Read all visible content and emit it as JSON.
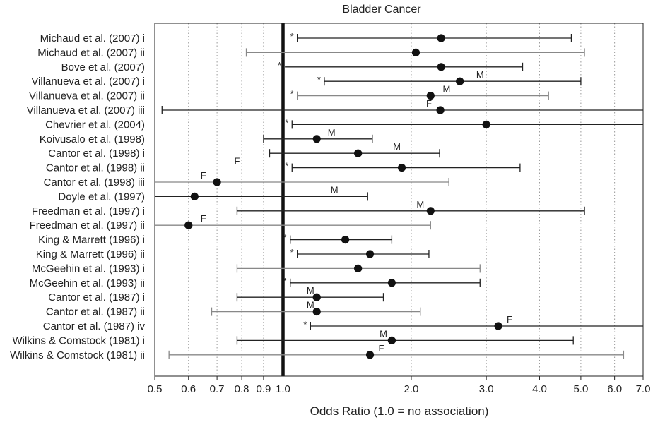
{
  "chart_data": {
    "type": "forest",
    "title": "Bladder Cancer",
    "xlabel": "Odds Ratio (1.0 = no association)",
    "xscale": "log",
    "xlim": [
      0.5,
      7.0
    ],
    "reference_line": 1.0,
    "ticks": [
      0.5,
      0.6,
      0.7,
      0.8,
      0.9,
      1.0,
      2.0,
      3.0,
      4.0,
      5.0,
      6.0,
      7.0
    ],
    "tick_labels": [
      "0.5",
      "0.6",
      "0.7",
      "0.8",
      "0.9",
      "1.0",
      "2.0",
      "3.0",
      "4.0",
      "5.0",
      "6.0",
      "7.0"
    ],
    "grid": "vertical-dotted",
    "studies": [
      {
        "label": "Michaud et al. (2007) i",
        "or": 2.35,
        "lo": 1.08,
        "hi": 4.75,
        "ci_color": "#222222",
        "cap_lo": true,
        "cap_hi": true,
        "mark": "*",
        "mark_side": "lo"
      },
      {
        "label": "Michaud et al. (2007) ii",
        "or": 2.05,
        "lo": 0.82,
        "hi": 5.1,
        "ci_color": "#888888",
        "cap_lo": true,
        "cap_hi": true,
        "mark": "",
        "mark_side": "lo"
      },
      {
        "label": "Bove et al. (2007)",
        "or": 2.35,
        "lo": 1.01,
        "hi": 3.65,
        "ci_color": "#222222",
        "cap_lo": false,
        "cap_hi": true,
        "mark": "*",
        "mark_side": "lo"
      },
      {
        "label": "Villanueva et al. (2007) i",
        "or": 2.6,
        "lo": 1.25,
        "hi": 5.0,
        "ci_color": "#222222",
        "cap_lo": true,
        "cap_hi": true,
        "mark": "*",
        "mark_side": "lo"
      },
      {
        "label": "Villanueva et al. (2007) ii",
        "or": 2.22,
        "lo": 1.08,
        "hi": 4.2,
        "ci_color": "#888888",
        "cap_lo": true,
        "cap_hi": true,
        "mark": "*",
        "mark_side": "lo"
      },
      {
        "label": "Villanueva et al. (2007) iii",
        "or": 2.34,
        "lo": 0.52,
        "hi": 7.0,
        "ci_color": "#222222",
        "cap_lo": true,
        "cap_hi": false,
        "mark": "",
        "mark_side": "lo"
      },
      {
        "label": "Chevrier et al. (2004)",
        "or": 3.0,
        "lo": 1.05,
        "hi": 7.0,
        "ci_color": "#222222",
        "cap_lo": true,
        "cap_hi": false,
        "mark": "*",
        "mark_side": "lo"
      },
      {
        "label": "Koivusalo et al. (1998)",
        "or": 1.2,
        "lo": 0.9,
        "hi": 1.62,
        "ci_color": "#222222",
        "cap_lo": true,
        "cap_hi": true,
        "mark": "",
        "mark_side": "lo"
      },
      {
        "label": "Cantor et al. (1998) i",
        "or": 1.5,
        "lo": 0.93,
        "hi": 2.33,
        "ci_color": "#222222",
        "cap_lo": true,
        "cap_hi": true,
        "mark": "",
        "mark_side": "lo"
      },
      {
        "label": "Cantor et al. (1998) ii",
        "or": 1.9,
        "lo": 1.05,
        "hi": 3.6,
        "ci_color": "#222222",
        "cap_lo": true,
        "cap_hi": true,
        "mark": "*",
        "mark_side": "lo"
      },
      {
        "label": "Cantor et al. (1998) iii",
        "or": 0.7,
        "lo": 0.5,
        "hi": 2.45,
        "ci_color": "#888888",
        "cap_lo": false,
        "cap_hi": true,
        "mark": "",
        "mark_side": "lo"
      },
      {
        "label": "Doyle et al. (1997)",
        "or": 0.62,
        "lo": 0.5,
        "hi": 1.58,
        "ci_color": "#222222",
        "cap_lo": false,
        "cap_hi": true,
        "mark": "",
        "mark_side": "lo"
      },
      {
        "label": "Freedman et al. (1997) i",
        "or": 2.22,
        "lo": 0.78,
        "hi": 5.1,
        "ci_color": "#222222",
        "cap_lo": true,
        "cap_hi": true,
        "mark": "",
        "mark_side": "lo"
      },
      {
        "label": "Freedman et al. (1997) ii",
        "or": 0.6,
        "lo": 0.5,
        "hi": 2.22,
        "ci_color": "#888888",
        "cap_lo": false,
        "cap_hi": true,
        "mark": "",
        "mark_side": "lo"
      },
      {
        "label": "King & Marrett (1996) i",
        "or": 1.4,
        "lo": 1.04,
        "hi": 1.8,
        "ci_color": "#222222",
        "cap_lo": true,
        "cap_hi": true,
        "mark": "*",
        "mark_side": "lo"
      },
      {
        "label": "King & Marrett (1996) ii",
        "or": 1.6,
        "lo": 1.08,
        "hi": 2.2,
        "ci_color": "#222222",
        "cap_lo": true,
        "cap_hi": true,
        "mark": "*",
        "mark_side": "lo"
      },
      {
        "label": "McGeehin et al. (1993) i",
        "or": 1.5,
        "lo": 0.78,
        "hi": 2.9,
        "ci_color": "#888888",
        "cap_lo": true,
        "cap_hi": true,
        "mark": "",
        "mark_side": "lo"
      },
      {
        "label": "McGeehin et al. (1993) ii",
        "or": 1.8,
        "lo": 1.04,
        "hi": 2.9,
        "ci_color": "#222222",
        "cap_lo": true,
        "cap_hi": true,
        "mark": "*",
        "mark_side": "lo"
      },
      {
        "label": "Cantor et al. (1987) i",
        "or": 1.2,
        "lo": 0.78,
        "hi": 1.72,
        "ci_color": "#222222",
        "cap_lo": true,
        "cap_hi": true,
        "mark": "",
        "mark_side": "lo"
      },
      {
        "label": "Cantor et al. (1987) ii",
        "or": 1.2,
        "lo": 0.68,
        "hi": 2.1,
        "ci_color": "#888888",
        "cap_lo": true,
        "cap_hi": true,
        "mark": "",
        "mark_side": "lo"
      },
      {
        "label": "Cantor et al. (1987) iv",
        "or": 3.2,
        "lo": 1.16,
        "hi": 7.0,
        "ci_color": "#222222",
        "cap_lo": true,
        "cap_hi": false,
        "mark": "*",
        "mark_side": "lo"
      },
      {
        "label": "Wilkins & Comstock (1981) i",
        "or": 1.8,
        "lo": 0.78,
        "hi": 4.8,
        "ci_color": "#222222",
        "cap_lo": true,
        "cap_hi": true,
        "mark": "",
        "mark_side": "lo"
      },
      {
        "label": "Wilkins & Comstock (1981) ii",
        "or": 1.6,
        "lo": 0.54,
        "hi": 6.3,
        "ci_color": "#888888",
        "cap_lo": true,
        "cap_hi": true,
        "mark": "",
        "mark_side": "lo"
      }
    ],
    "annotations": [
      {
        "text": "M",
        "x": 2.9,
        "row": 3
      },
      {
        "text": "M",
        "x": 2.42,
        "row": 4
      },
      {
        "text": "F",
        "x": 2.2,
        "row": 5
      },
      {
        "text": "M",
        "x": 1.3,
        "row": 7
      },
      {
        "text": "M",
        "x": 1.85,
        "row": 8
      },
      {
        "text": "F",
        "x": 0.78,
        "row": 9
      },
      {
        "text": "F",
        "x": 0.65,
        "row": 10
      },
      {
        "text": "M",
        "x": 1.32,
        "row": 11
      },
      {
        "text": "M",
        "x": 2.1,
        "row": 12
      },
      {
        "text": "F",
        "x": 0.65,
        "row": 13
      },
      {
        "text": "M",
        "x": 1.16,
        "row": 18
      },
      {
        "text": "M",
        "x": 1.16,
        "row": 19
      },
      {
        "text": "F",
        "x": 3.4,
        "row": 20
      },
      {
        "text": "M",
        "x": 1.72,
        "row": 21
      },
      {
        "text": "F",
        "x": 1.7,
        "row": 22
      }
    ]
  }
}
